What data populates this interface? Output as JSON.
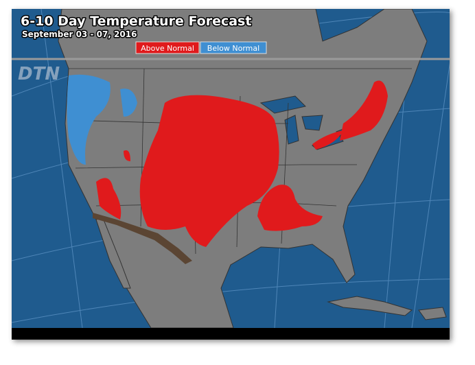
{
  "map": {
    "title": "6-10 Day Temperature Forecast",
    "subtitle": "September 03 - 07, 2016",
    "legend": [
      {
        "label": "Above Normal",
        "color": "#e01a1c"
      },
      {
        "label": "Below Normal",
        "color": "#3f8fd2"
      }
    ],
    "logo": "DTN"
  }
}
